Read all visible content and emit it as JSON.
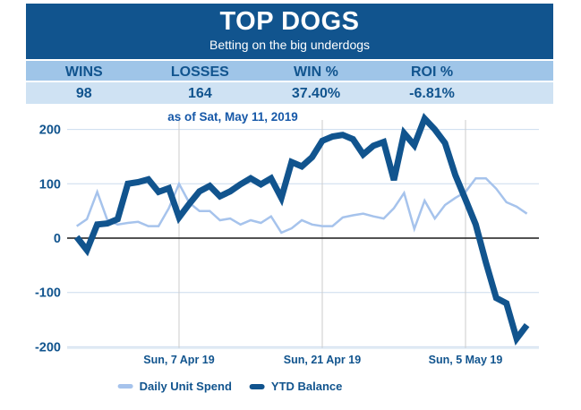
{
  "header": {
    "title": "TOP DOGS",
    "subtitle": "Betting on the big underdogs"
  },
  "stats": {
    "columns": [
      "WINS",
      "LOSSES",
      "WIN %",
      "ROI %"
    ],
    "values": [
      "98",
      "164",
      "37.40%",
      "-6.81%"
    ]
  },
  "colors": {
    "dark_blue": "#11548E",
    "mid_blue_row": "#9FC5E8",
    "pale_blue_row": "#CFE2F3",
    "light_line": "#A6C3EC",
    "h_gridline": "#CBDCEE",
    "v_gridline": "#CCCCCC",
    "zero_line": "#1A1A1A",
    "chart_title_blue": "#1658A8"
  },
  "chart_data": {
    "type": "line",
    "title": "as of Sat, May 11, 2019",
    "xlabel": "",
    "ylabel": "",
    "grid": true,
    "legend_position": "bottom",
    "ylim": [
      -203,
      215
    ],
    "y_ticks": [
      200,
      100,
      0,
      -100,
      -200
    ],
    "x_count": 45,
    "x_tick_labels": [
      "Sun, 7 Apr 19",
      "Sun, 21 Apr 19",
      "Sun, 5 May 19"
    ],
    "x_tick_indices": [
      10,
      24,
      38
    ],
    "series": [
      {
        "name": "Daily Unit Spend",
        "color": "#A6C3EC",
        "stroke_width": 2.5,
        "values": [
          22,
          35,
          85,
          33,
          25,
          28,
          30,
          22,
          22,
          55,
          100,
          65,
          50,
          50,
          33,
          36,
          25,
          33,
          28,
          40,
          10,
          18,
          33,
          25,
          22,
          22,
          38,
          42,
          45,
          40,
          36,
          55,
          83,
          17,
          69,
          36,
          61,
          74,
          85,
          110,
          110,
          91,
          66,
          58,
          45
        ]
      },
      {
        "name": "YTD Balance",
        "color": "#11548E",
        "stroke_width": 7,
        "values": [
          2,
          -22,
          25,
          27,
          35,
          100,
          103,
          108,
          85,
          92,
          38,
          63,
          86,
          96,
          77,
          86,
          99,
          110,
          99,
          110,
          74,
          140,
          132,
          149,
          179,
          187,
          190,
          182,
          154,
          170,
          177,
          107,
          193,
          171,
          220,
          200,
          175,
          116,
          71,
          25,
          -45,
          -110,
          -120,
          -185,
          -160
        ]
      }
    ]
  }
}
